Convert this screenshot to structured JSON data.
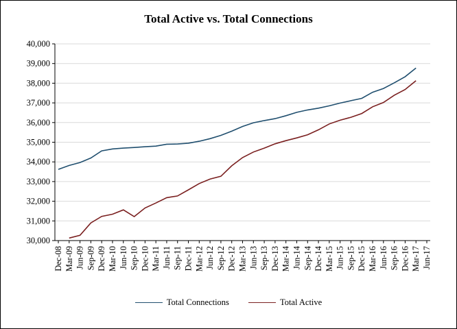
{
  "chart_data": {
    "type": "line",
    "title": "Total Active vs. Total Connections",
    "xlabel": "",
    "ylabel": "",
    "ylim": [
      30000,
      40000
    ],
    "y_ticks": [
      "30,000",
      "31,000",
      "32,000",
      "33,000",
      "34,000",
      "35,000",
      "36,000",
      "37,000",
      "38,000",
      "39,000",
      "40,000"
    ],
    "y_tick_values": [
      30000,
      31000,
      32000,
      33000,
      34000,
      35000,
      36000,
      37000,
      38000,
      39000,
      40000
    ],
    "categories": [
      "Dec-08",
      "Mar-09",
      "Jun-09",
      "Sep-09",
      "Dec-09",
      "Mar-10",
      "Jun-10",
      "Sep-10",
      "Dec-10",
      "Mar-11",
      "Jun-11",
      "Sep-11",
      "Dec-11",
      "Mar-12",
      "Jun-12",
      "Sep-12",
      "Dec-12",
      "Mar-13",
      "Jun-13",
      "Sep-13",
      "Dec-13",
      "Mar-14",
      "Jun-14",
      "Sep-14",
      "Dec-14",
      "Mar-15",
      "Jun-15",
      "Sep-15",
      "Dec-15",
      "Mar-16",
      "Jun-16",
      "Sep-16",
      "Dec-16",
      "Mar-17",
      "Jun-17"
    ],
    "series": [
      {
        "name": "Total Connections",
        "color": "#1f4e6e",
        "values": [
          33620,
          33820,
          33970,
          34200,
          34560,
          34660,
          34700,
          34730,
          34770,
          34800,
          34900,
          34910,
          34950,
          35050,
          35180,
          35350,
          35560,
          35800,
          35990,
          36100,
          36200,
          36350,
          36520,
          36640,
          36730,
          36850,
          36990,
          37110,
          37230,
          37540,
          37730,
          38020,
          38330,
          38770,
          null
        ]
      },
      {
        "name": "Total Active",
        "color": "#7a1f1f",
        "values": [
          null,
          30130,
          30270,
          30900,
          31230,
          31340,
          31560,
          31220,
          31660,
          31910,
          32180,
          32270,
          32580,
          32900,
          33130,
          33270,
          33800,
          34220,
          34500,
          34700,
          34920,
          35080,
          35220,
          35380,
          35630,
          35930,
          36120,
          36270,
          36460,
          36800,
          37020,
          37390,
          37680,
          38130,
          null
        ]
      }
    ],
    "x_tick_labels": [
      "Dec-08",
      "Mar-09",
      "Jun-09",
      "Sep-09",
      "Dec-09",
      "Mar-10",
      "Jun-10",
      "Sep-10",
      "Dec-10",
      "Mar-11",
      "Jun-11",
      "Sep-11",
      "Dec-11",
      "Mar-12",
      "Jun-12",
      "Sep-12",
      "Dec-12",
      "Mar-13",
      "Jun-13",
      "Sep-13",
      "Dec-13",
      "Mar-14",
      "Jun-14",
      "Sep-14",
      "Dec-14",
      "Mar-15",
      "Jun-15",
      "Sep-15",
      "Dec-15",
      "Mar-16",
      "Jun-16",
      "Sep-16",
      "Dec-16",
      "Mar-17",
      "Jun-17"
    ],
    "legend": {
      "placement": "bottom-center",
      "entries": [
        "Total Connections",
        "Total Active"
      ]
    },
    "grid": true
  }
}
